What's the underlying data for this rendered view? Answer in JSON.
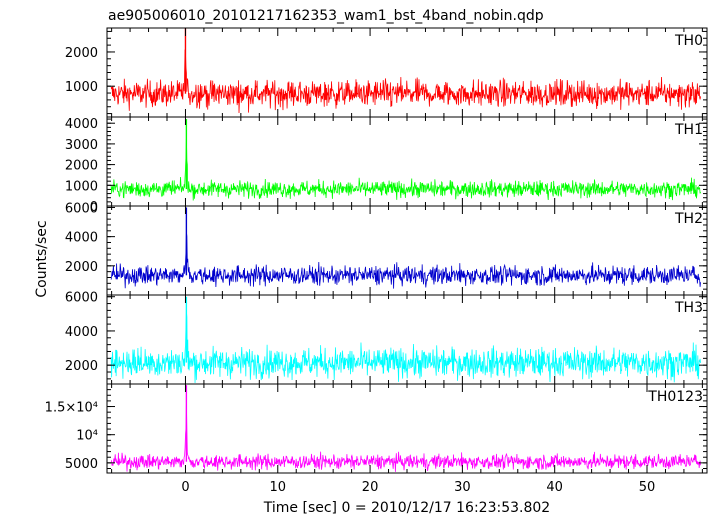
{
  "chart_data": {
    "type": "line",
    "title": "ae905006010_20101217162353_wam1_bst_4band_nobin.qdp",
    "xlabel": "Time [sec] 0 = 2010/12/17 16:23:53.802",
    "ylabel": "Counts/sec",
    "xlim": [
      -8.5,
      56.5
    ],
    "x_ticks": [
      {
        "value": 0,
        "label": "0"
      },
      {
        "value": 10,
        "label": "10"
      },
      {
        "value": 20,
        "label": "20"
      },
      {
        "value": 30,
        "label": "30"
      },
      {
        "value": 40,
        "label": "40"
      },
      {
        "value": 50,
        "label": "50"
      }
    ],
    "grid": false,
    "panels": [
      {
        "name": "TH0",
        "color": "#ff0000",
        "ylim": [
          100,
          2700
        ],
        "y_ticks": [
          {
            "value": 1000,
            "label": "1000"
          },
          {
            "value": 2000,
            "label": "2000"
          }
        ],
        "baseline_mean": 780,
        "noise_sd": 190,
        "peak": {
          "x": 0.0,
          "y": 2700
        }
      },
      {
        "name": "TH1",
        "color": "#00ff00",
        "ylim": [
          0,
          4300
        ],
        "y_ticks": [
          {
            "value": 0,
            "label": "0"
          },
          {
            "value": 1000,
            "label": "1000"
          },
          {
            "value": 2000,
            "label": "2000"
          },
          {
            "value": 3000,
            "label": "3000"
          },
          {
            "value": 4000,
            "label": "4000"
          }
        ],
        "baseline_mean": 820,
        "noise_sd": 200,
        "peak": {
          "x": 0.1,
          "y": 4200
        }
      },
      {
        "name": "TH2",
        "color": "#0000cd",
        "ylim": [
          0,
          6100
        ],
        "y_ticks": [
          {
            "value": 2000,
            "label": "2000"
          },
          {
            "value": 4000,
            "label": "4000"
          },
          {
            "value": 6000,
            "label": "6000"
          }
        ],
        "baseline_mean": 1350,
        "noise_sd": 330,
        "peak": {
          "x": 0.1,
          "y": 6000
        }
      },
      {
        "name": "TH3",
        "color": "#00ffff",
        "ylim": [
          900,
          6100
        ],
        "y_ticks": [
          {
            "value": 2000,
            "label": "2000"
          },
          {
            "value": 4000,
            "label": "4000"
          },
          {
            "value": 6000,
            "label": "6000"
          }
        ],
        "baseline_mean": 2150,
        "noise_sd": 430,
        "peak": {
          "x": 0.1,
          "y": 6000
        }
      },
      {
        "name": "TH0123",
        "color": "#ff00ff",
        "ylim": [
          3200,
          19000
        ],
        "y_ticks": [
          {
            "value": 5000,
            "label": "5000"
          },
          {
            "value": 10000,
            "label": "10⁴"
          },
          {
            "value": 15000,
            "label": "1.5×10⁴"
          }
        ],
        "baseline_mean": 5200,
        "noise_sd": 650,
        "peak": {
          "x": 0.1,
          "y": 18800
        }
      }
    ]
  }
}
